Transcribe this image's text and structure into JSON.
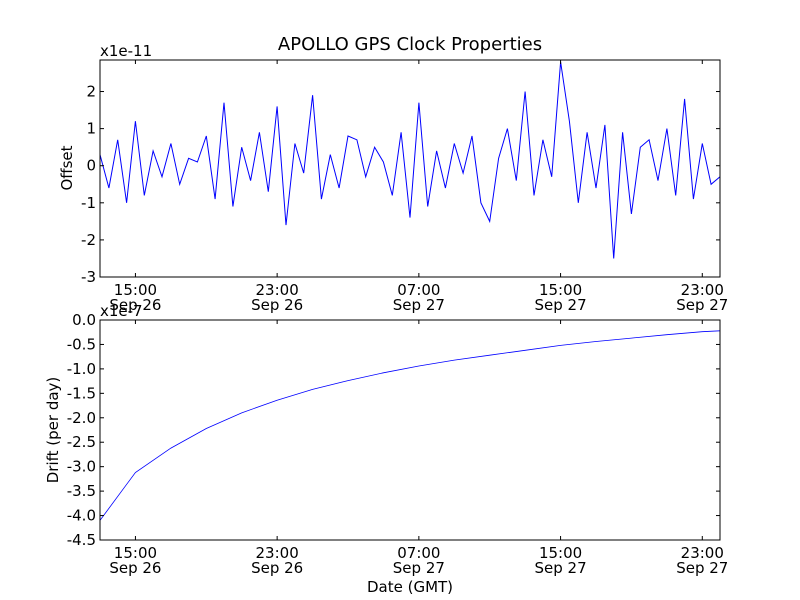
{
  "chart_data": [
    {
      "type": "line",
      "title": "APOLLO GPS Clock Properties",
      "ylabel": "Offset",
      "xlabel": "",
      "y_multiplier": "x1e-11",
      "ylim": [
        -3,
        2.85
      ],
      "y_ticks": [
        "-3",
        "-2",
        "-1",
        "0",
        "1",
        "2"
      ],
      "x_ticks": [
        {
          "time": "15:00",
          "date": "Sep 26"
        },
        {
          "time": "23:00",
          "date": "Sep 26"
        },
        {
          "time": "07:00",
          "date": "Sep 27"
        },
        {
          "time": "15:00",
          "date": "Sep 27"
        },
        {
          "time": "23:00",
          "date": "Sep 27"
        }
      ],
      "xlim": [
        "2010-09-26 13:00",
        "2010-09-28 00:00"
      ],
      "series": [
        {
          "color": "#0000ff",
          "x": [
            "2010-09-26 13:00",
            "2010-09-26 13:30",
            "2010-09-26 14:00",
            "2010-09-26 14:30",
            "2010-09-26 15:00",
            "2010-09-26 15:30",
            "2010-09-26 16:00",
            "2010-09-26 16:30",
            "2010-09-26 17:00",
            "2010-09-26 17:30",
            "2010-09-26 18:00",
            "2010-09-26 18:30",
            "2010-09-26 19:00",
            "2010-09-26 19:30",
            "2010-09-26 20:00",
            "2010-09-26 20:30",
            "2010-09-26 21:00",
            "2010-09-26 21:30",
            "2010-09-26 22:00",
            "2010-09-26 22:30",
            "2010-09-26 23:00",
            "2010-09-26 23:30",
            "2010-09-27 00:00",
            "2010-09-27 00:30",
            "2010-09-27 01:00",
            "2010-09-27 01:30",
            "2010-09-27 02:00",
            "2010-09-27 02:30",
            "2010-09-27 03:00",
            "2010-09-27 03:30",
            "2010-09-27 04:00",
            "2010-09-27 04:30",
            "2010-09-27 05:00",
            "2010-09-27 05:30",
            "2010-09-27 06:00",
            "2010-09-27 06:30",
            "2010-09-27 07:00",
            "2010-09-27 07:30",
            "2010-09-27 08:00",
            "2010-09-27 08:30",
            "2010-09-27 09:00",
            "2010-09-27 09:30",
            "2010-09-27 10:00",
            "2010-09-27 10:30",
            "2010-09-27 11:00",
            "2010-09-27 11:30",
            "2010-09-27 12:00",
            "2010-09-27 12:30",
            "2010-09-27 13:00",
            "2010-09-27 13:30",
            "2010-09-27 14:00",
            "2010-09-27 14:30",
            "2010-09-27 15:00",
            "2010-09-27 15:30",
            "2010-09-27 16:00",
            "2010-09-27 16:30",
            "2010-09-27 17:00",
            "2010-09-27 17:30",
            "2010-09-27 18:00",
            "2010-09-27 18:30",
            "2010-09-27 19:00",
            "2010-09-27 19:30",
            "2010-09-27 20:00",
            "2010-09-27 20:30",
            "2010-09-27 21:00",
            "2010-09-27 21:30",
            "2010-09-27 22:00",
            "2010-09-27 22:30",
            "2010-09-27 23:00",
            "2010-09-27 23:30",
            "2010-09-28 00:00"
          ],
          "y": [
            0.3,
            -0.6,
            0.7,
            -1.0,
            1.2,
            -0.8,
            0.4,
            -0.3,
            0.6,
            -0.5,
            0.2,
            0.1,
            0.8,
            -0.9,
            1.7,
            -1.1,
            0.5,
            -0.4,
            0.9,
            -0.7,
            1.6,
            -1.6,
            0.6,
            -0.2,
            1.9,
            -0.9,
            0.3,
            -0.6,
            0.8,
            0.7,
            -0.3,
            0.5,
            0.1,
            -0.8,
            0.9,
            -1.4,
            1.7,
            -1.1,
            0.4,
            -0.6,
            0.6,
            -0.2,
            0.8,
            -1.0,
            -1.5,
            0.2,
            1.0,
            -0.4,
            2.0,
            -0.8,
            0.7,
            -0.3,
            2.8,
            1.2,
            -1.0,
            0.9,
            -0.6,
            1.1,
            -2.5,
            0.9,
            -1.3,
            0.5,
            0.7,
            -0.4,
            1.0,
            -0.8,
            1.8,
            -0.9,
            0.6,
            -0.5,
            -0.3
          ]
        }
      ]
    },
    {
      "type": "line",
      "title": "",
      "ylabel": "Drift (per day)",
      "xlabel": "Date (GMT)",
      "y_multiplier": "x1e-7",
      "ylim": [
        -4.5,
        0.0
      ],
      "y_ticks": [
        "-4.5",
        "-4.0",
        "-3.5",
        "-3.0",
        "-2.5",
        "-2.0",
        "-1.5",
        "-1.0",
        "-0.5",
        "0.0"
      ],
      "x_ticks": [
        {
          "time": "15:00",
          "date": "Sep 26"
        },
        {
          "time": "23:00",
          "date": "Sep 26"
        },
        {
          "time": "07:00",
          "date": "Sep 27"
        },
        {
          "time": "15:00",
          "date": "Sep 27"
        },
        {
          "time": "23:00",
          "date": "Sep 27"
        }
      ],
      "xlim": [
        "2010-09-26 13:00",
        "2010-09-28 00:00"
      ],
      "series": [
        {
          "color": "#0000ff",
          "x": [
            "2010-09-26 13:00",
            "2010-09-26 15:00",
            "2010-09-26 17:00",
            "2010-09-26 19:00",
            "2010-09-26 21:00",
            "2010-09-26 23:00",
            "2010-09-27 01:00",
            "2010-09-27 03:00",
            "2010-09-27 05:00",
            "2010-09-27 07:00",
            "2010-09-27 09:00",
            "2010-09-27 11:00",
            "2010-09-27 13:00",
            "2010-09-27 15:00",
            "2010-09-27 17:00",
            "2010-09-27 19:00",
            "2010-09-27 21:00",
            "2010-09-27 23:00",
            "2010-09-28 00:00"
          ],
          "y": [
            -4.1,
            -3.12,
            -2.62,
            -2.22,
            -1.9,
            -1.64,
            -1.42,
            -1.24,
            -1.08,
            -0.94,
            -0.82,
            -0.72,
            -0.62,
            -0.52,
            -0.44,
            -0.37,
            -0.3,
            -0.24,
            -0.22
          ]
        }
      ]
    }
  ]
}
